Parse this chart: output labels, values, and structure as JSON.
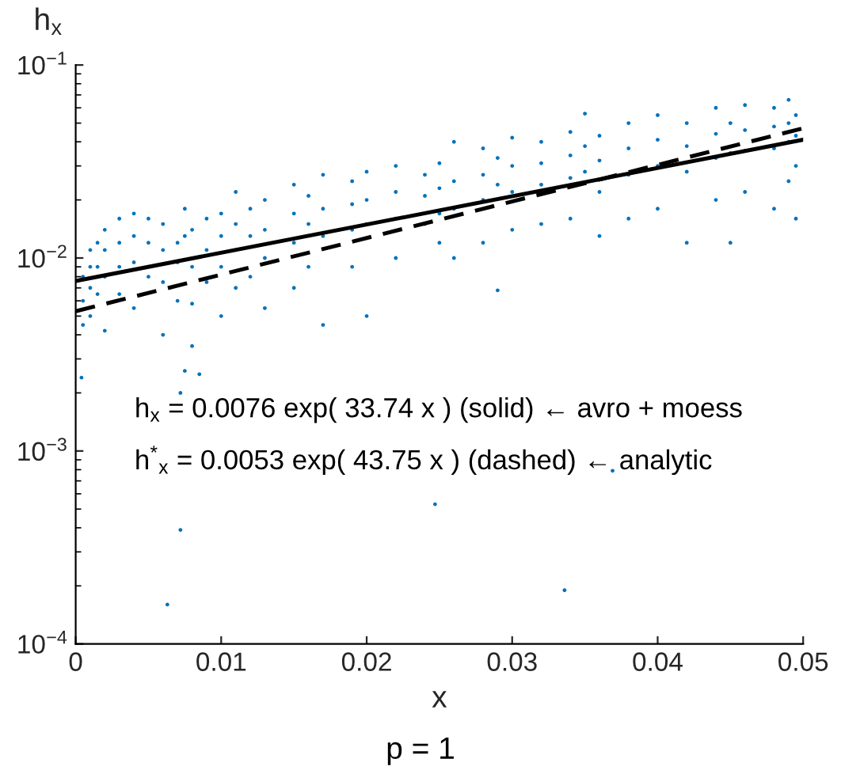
{
  "chart_data": {
    "type": "scatter",
    "xlabel": "x",
    "ylabel": "h$_{x}$",
    "log": "y",
    "grid": false,
    "legend": false,
    "xlim": [
      0,
      0.05
    ],
    "xticks": [
      0,
      0.01,
      0.02,
      0.03,
      0.04,
      0.05
    ],
    "ylim": [
      0.0001,
      0.1
    ],
    "yticks": [
      {
        "value": 0.0001,
        "label": "10$^{−4}$"
      },
      {
        "value": 0.001,
        "label": "10$^{−3}$"
      },
      {
        "value": 0.01,
        "label": "10$^{−2}$"
      },
      {
        "value": 0.1,
        "label": "10$^{−1}$"
      }
    ],
    "annotations": [
      "h$_{x}$ = 0.0076 exp( 33.74 x ) (solid) ← avro + moess",
      "h$^{*}$$_{x}$ = 0.0053 exp( 43.75 x ) (dashed) ← analytic",
      "p = 1"
    ],
    "series": [
      {
        "marker": "circle",
        "color": "#0072bd",
        "x": [
          0.0005,
          0.0005,
          0.0005,
          0.001,
          0.001,
          0.001,
          0.001,
          0.0015,
          0.0015,
          0.0015,
          0.002,
          0.002,
          0.002,
          0.002,
          0.003,
          0.003,
          0.003,
          0.003,
          0.004,
          0.004,
          0.004,
          0.004,
          0.005,
          0.005,
          0.005,
          0.006,
          0.006,
          0.006,
          0.006,
          0.007,
          0.007,
          0.007,
          0.0075,
          0.0075,
          0.008,
          0.008,
          0.008,
          0.008,
          0.009,
          0.009,
          0.009,
          0.01,
          0.01,
          0.01,
          0.01,
          0.011,
          0.011,
          0.011,
          0.011,
          0.012,
          0.012,
          0.012,
          0.013,
          0.013,
          0.013,
          0.013,
          0.015,
          0.015,
          0.015,
          0.015,
          0.016,
          0.016,
          0.016,
          0.017,
          0.017,
          0.017,
          0.017,
          0.019,
          0.019,
          0.019,
          0.019,
          0.02,
          0.02,
          0.02,
          0.02,
          0.022,
          0.022,
          0.022,
          0.022,
          0.024,
          0.024,
          0.024,
          0.025,
          0.025,
          0.025,
          0.025,
          0.026,
          0.026,
          0.026,
          0.026,
          0.028,
          0.028,
          0.028,
          0.028,
          0.029,
          0.029,
          0.029,
          0.03,
          0.03,
          0.03,
          0.03,
          0.032,
          0.032,
          0.032,
          0.032,
          0.034,
          0.034,
          0.034,
          0.034,
          0.035,
          0.035,
          0.035,
          0.036,
          0.036,
          0.036,
          0.036,
          0.038,
          0.038,
          0.038,
          0.038,
          0.04,
          0.04,
          0.04,
          0.04,
          0.042,
          0.042,
          0.042,
          0.042,
          0.044,
          0.044,
          0.044,
          0.044,
          0.045,
          0.045,
          0.045,
          0.046,
          0.046,
          0.046,
          0.046,
          0.048,
          0.048,
          0.048,
          0.048,
          0.049,
          0.049,
          0.049,
          0.049,
          0.0495,
          0.0495,
          0.0495,
          0.0495,
          0.0004,
          0.0072,
          0.0072,
          0.0063,
          0.0247,
          0.0336,
          0.0369,
          0.0075,
          0.0085
        ],
        "values": [
          0.006,
          0.008,
          0.0045,
          0.009,
          0.011,
          0.005,
          0.007,
          0.012,
          0.009,
          0.0065,
          0.014,
          0.011,
          0.008,
          0.0042,
          0.016,
          0.012,
          0.009,
          0.0065,
          0.017,
          0.013,
          0.0095,
          0.0055,
          0.016,
          0.012,
          0.008,
          0.015,
          0.011,
          0.0075,
          0.004,
          0.012,
          0.0095,
          0.006,
          0.018,
          0.013,
          0.014,
          0.009,
          0.0058,
          0.0035,
          0.016,
          0.011,
          0.0075,
          0.017,
          0.013,
          0.009,
          0.005,
          0.022,
          0.015,
          0.011,
          0.007,
          0.018,
          0.013,
          0.008,
          0.02,
          0.014,
          0.01,
          0.0055,
          0.024,
          0.017,
          0.012,
          0.007,
          0.021,
          0.015,
          0.009,
          0.027,
          0.018,
          0.013,
          0.0045,
          0.025,
          0.019,
          0.014,
          0.009,
          0.028,
          0.02,
          0.015,
          0.005,
          0.03,
          0.022,
          0.016,
          0.01,
          0.027,
          0.021,
          0.015,
          0.031,
          0.023,
          0.017,
          0.012,
          0.04,
          0.025,
          0.018,
          0.01,
          0.037,
          0.027,
          0.02,
          0.012,
          0.033,
          0.024,
          0.0068,
          0.042,
          0.03,
          0.022,
          0.014,
          0.04,
          0.031,
          0.024,
          0.015,
          0.045,
          0.034,
          0.026,
          0.016,
          0.056,
          0.038,
          0.028,
          0.043,
          0.032,
          0.022,
          0.013,
          0.05,
          0.037,
          0.027,
          0.016,
          0.055,
          0.041,
          0.03,
          0.018,
          0.05,
          0.038,
          0.028,
          0.012,
          0.06,
          0.044,
          0.033,
          0.02,
          0.05,
          0.035,
          0.012,
          0.062,
          0.046,
          0.036,
          0.022,
          0.06,
          0.048,
          0.037,
          0.018,
          0.066,
          0.05,
          0.04,
          0.025,
          0.055,
          0.043,
          0.03,
          0.016,
          0.0024,
          0.002,
          0.00039,
          0.00016,
          0.00053,
          0.00019,
          0.00079,
          0.0026,
          0.0025
        ]
      },
      {
        "type": "line",
        "color": "#000000",
        "line_style": "solid",
        "marker": "none",
        "x": [
          0,
          0.05
        ],
        "values": [
          0.0076,
          0.041
        ]
      },
      {
        "type": "line",
        "color": "#000000",
        "line_style": "dashed",
        "marker": "none",
        "x": [
          0,
          0.05
        ],
        "values": [
          0.0053,
          0.047
        ]
      }
    ]
  }
}
